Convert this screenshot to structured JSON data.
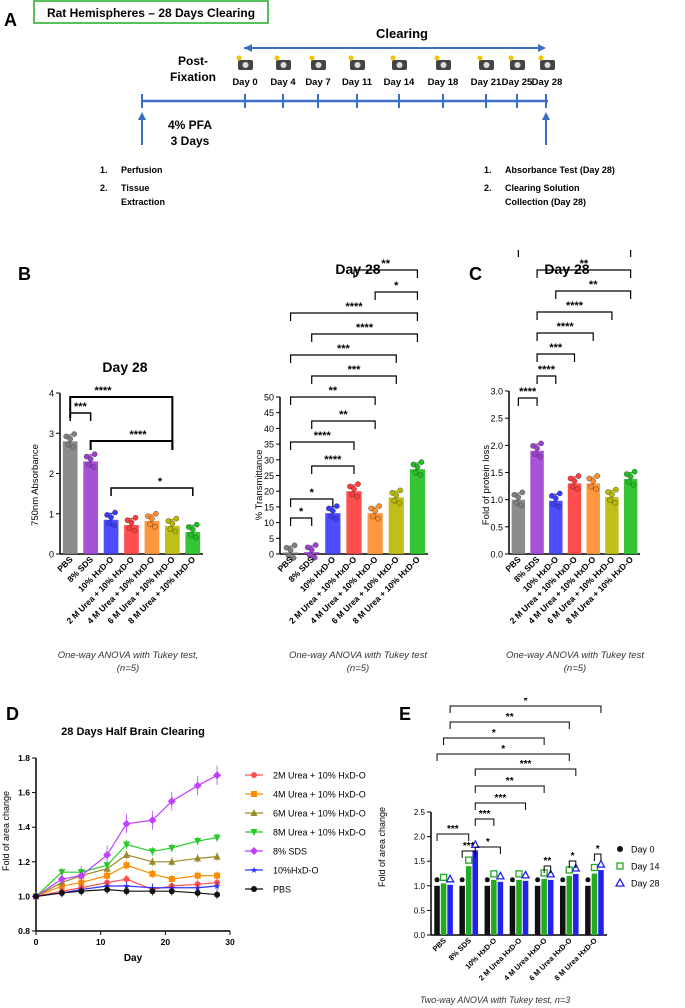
{
  "panel_a": {
    "letter": "A",
    "title": "Rat Hemispheres – 28 Days Clearing",
    "clearing_label": "Clearing",
    "post_fixation_label_1": "Post-",
    "post_fixation_label_2": "Fixation",
    "days": [
      "Day 0",
      "Day 4",
      "Day 7",
      "Day 11",
      "Day 14",
      "Day 18",
      "Day 21",
      "Day 25",
      "Day 28"
    ],
    "pfa_label_1": "4% PFA",
    "pfa_label_2": "3 Days",
    "left_steps": [
      "1.",
      "Perfusion",
      "2.",
      "Tissue",
      "Extraction"
    ],
    "right_steps": [
      "1.",
      "Absorbance Test (Day 28)",
      "2.",
      "Clearing Solution",
      "Collection (Day 28)"
    ]
  },
  "sig": {
    "s1": "*",
    "s2": "**",
    "s3": "***",
    "s4": "****"
  },
  "chart_data": [
    {
      "id": "B",
      "type": "bar",
      "title": "Day 28",
      "ylabel": "750nm Absorbance",
      "ylim": [
        0,
        4
      ],
      "yticks": [
        "0",
        "1",
        "2",
        "3",
        "4"
      ],
      "categories": [
        "PBS",
        "8% SDS",
        "10% HxD-O",
        "2 M Urea + 10% HxD-O",
        "4 M Urea + 10% HxD-O",
        "6 M Urea + 10% HxD-O",
        "8 M Urea + 10% HxD-O"
      ],
      "values": [
        2.8,
        2.3,
        0.85,
        0.72,
        0.82,
        0.7,
        0.55
      ],
      "colors": [
        "#808080",
        "#9b3fd1",
        "#3a3aff",
        "#ff3b3b",
        "#ff8c2a",
        "#b8b800",
        "#1fbf1f"
      ],
      "caption_1": "One-way ANOVA with Tukey test,",
      "caption_2": "(n=5)"
    },
    {
      "id": "B2",
      "type": "bar",
      "title": "Day 28",
      "ylabel": "% Transmittance",
      "ylim": [
        0,
        50
      ],
      "yticks": [
        "0",
        "5",
        "10",
        "15",
        "20",
        "25",
        "30",
        "35",
        "40",
        "45",
        "50"
      ],
      "categories": [
        "PBS",
        "8% SDS",
        "10% HxD-O",
        "2 M Urea + 10% HxD-O",
        "4 M Urea + 10% HxD-O",
        "6 M Urea + 10% HxD-O",
        "8 M Urea + 10% HxD-O"
      ],
      "values": [
        0.5,
        0.6,
        13,
        20,
        13,
        18,
        27
      ],
      "colors": [
        "#808080",
        "#9b3fd1",
        "#3a3aff",
        "#ff3b3b",
        "#ff8c2a",
        "#b8b800",
        "#1fbf1f"
      ],
      "caption_1": "One-way ANOVA with Tukey test",
      "caption_2": "(n=5)"
    },
    {
      "id": "C",
      "type": "bar",
      "letter": "C",
      "title": "Day 28",
      "ylabel": "Fold of protein loss",
      "ylim": [
        0,
        3
      ],
      "yticks": [
        "0.0",
        "0.5",
        "1.0",
        "1.5",
        "2.0",
        "2.5",
        "3.0"
      ],
      "categories": [
        "PBS",
        "8% SDS",
        "10% HxD-O",
        "2 M Urea + 10% HxD-O",
        "4 M Urea + 10% HxD-O",
        "6 M Urea + 10% HxD-O",
        "8 M Urea + 10% HxD-O"
      ],
      "values": [
        1.0,
        1.9,
        0.98,
        1.3,
        1.3,
        1.05,
        1.38
      ],
      "colors": [
        "#808080",
        "#9b3fd1",
        "#3a3aff",
        "#ff3b3b",
        "#ff8c2a",
        "#b8b800",
        "#1fbf1f"
      ],
      "caption_1": "One-way ANOVA with Tukey test",
      "caption_2": "(n=5)"
    },
    {
      "id": "D",
      "type": "line",
      "letter": "D",
      "title": "28 Days Half Brain Clearing",
      "xlabel": "Day",
      "ylabel": "Fold of area change",
      "xlim": [
        0,
        30
      ],
      "ylim": [
        0.8,
        1.8
      ],
      "xticks": [
        "0",
        "10",
        "20",
        "30"
      ],
      "yticks": [
        "0.8",
        "1.0",
        "1.2",
        "1.4",
        "1.6",
        "1.8"
      ],
      "x": [
        0,
        4,
        7,
        11,
        14,
        18,
        21,
        25,
        28
      ],
      "series": [
        {
          "name": "2M Urea + 10% HxD-O",
          "color": "#ff5050",
          "marker": "circle",
          "values": [
            1.0,
            1.03,
            1.05,
            1.08,
            1.1,
            1.04,
            1.06,
            1.07,
            1.08
          ]
        },
        {
          "name": "4M Urea + 10% HxD-O",
          "color": "#ff8c00",
          "marker": "square",
          "values": [
            1.0,
            1.06,
            1.08,
            1.12,
            1.18,
            1.13,
            1.1,
            1.12,
            1.12
          ]
        },
        {
          "name": "6M Urea + 10% HxD-O",
          "color": "#9a8a2a",
          "marker": "triangle",
          "values": [
            1.0,
            1.08,
            1.12,
            1.16,
            1.24,
            1.2,
            1.2,
            1.22,
            1.23
          ]
        },
        {
          "name": "8M Urea + 10% HxD-O",
          "color": "#22cc22",
          "marker": "triangle-down",
          "values": [
            1.0,
            1.14,
            1.14,
            1.18,
            1.3,
            1.26,
            1.28,
            1.32,
            1.34
          ]
        },
        {
          "name": "8% SDS",
          "color": "#c040ff",
          "marker": "diamond",
          "values": [
            1.0,
            1.1,
            1.12,
            1.24,
            1.42,
            1.44,
            1.55,
            1.64,
            1.7
          ]
        },
        {
          "name": "10%HxD-O",
          "color": "#3030ff",
          "marker": "star",
          "values": [
            1.0,
            1.02,
            1.04,
            1.06,
            1.06,
            1.05,
            1.05,
            1.05,
            1.06
          ]
        },
        {
          "name": "PBS",
          "color": "#111111",
          "marker": "circle",
          "values": [
            1.0,
            1.02,
            1.03,
            1.04,
            1.03,
            1.03,
            1.03,
            1.02,
            1.01
          ]
        }
      ]
    },
    {
      "id": "E",
      "type": "bar",
      "letter": "E",
      "ylabel": "Fold of area change",
      "ylim": [
        0,
        2.5
      ],
      "yticks": [
        "0.0",
        "0.5",
        "1.0",
        "1.5",
        "2.0",
        "2.5"
      ],
      "categories": [
        "PBS",
        "8% SDS",
        "10% HxD-O",
        "2 M Urea HxD-O",
        "4 M Urea HxD-O",
        "6 M Urea HxD-O",
        "8 M Urea HxD-O"
      ],
      "series": [
        {
          "name": "Day 0",
          "color": "#111111",
          "values": [
            1.0,
            1.0,
            1.0,
            1.0,
            1.0,
            1.0,
            1.0
          ]
        },
        {
          "name": "Day 14",
          "color": "#22aa22",
          "values": [
            1.05,
            1.4,
            1.12,
            1.12,
            1.14,
            1.2,
            1.25
          ]
        },
        {
          "name": "Day 28",
          "color": "#2222ee",
          "values": [
            1.02,
            1.72,
            1.08,
            1.1,
            1.12,
            1.24,
            1.32
          ]
        }
      ],
      "caption": "Two-way ANOVA with Tukey test, n=3"
    }
  ]
}
